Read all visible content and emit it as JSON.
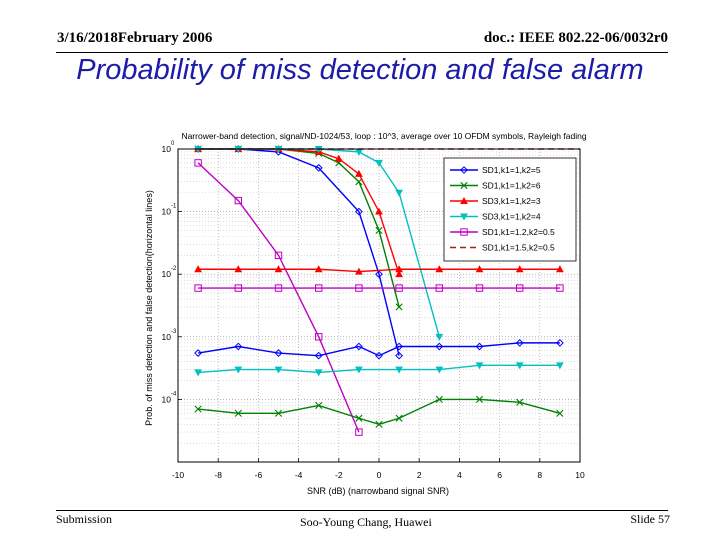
{
  "header": {
    "left": "3/16/2018February 2006",
    "right": "doc.: IEEE 802.22-06/0032r0"
  },
  "slide_title": "Probability of miss detection and false alarm",
  "footer": {
    "left": "Submission",
    "center": "Soo-Young Chang, Huawei",
    "right": "Slide 57"
  },
  "chart_data": {
    "type": "line",
    "title": "Narrower-band detection, signal/ND-1024/53, loop : 10^3, average over 10 OFDM symbols, Rayleigh fading",
    "xlabel": "SNR (dB) (narrowband signal SNR)",
    "ylabel": "Prob. of miss detection and false detection(horizontal lines)",
    "xlim": [
      -10,
      10
    ],
    "ylim_log10": [
      -5,
      0
    ],
    "xticks": [
      -10,
      -8,
      -6,
      -4,
      -2,
      0,
      2,
      4,
      6,
      8,
      10
    ],
    "xtick_labels": [
      "-10",
      "-8",
      "-6",
      "-4",
      "-2",
      "0",
      "2",
      "4",
      "6",
      "8",
      "10"
    ],
    "ytick_labels": [
      {
        "base": "10",
        "exp": "0",
        "value": 1
      },
      {
        "base": "10",
        "exp": "-1",
        "value": 0.1
      },
      {
        "base": "10",
        "exp": "-2",
        "value": 0.01
      },
      {
        "base": "10",
        "exp": "-3",
        "value": 0.001
      },
      {
        "base": "10",
        "exp": "-4",
        "value": 0.0001
      }
    ],
    "grid": true,
    "legend_position": "top-right",
    "series": [
      {
        "name": "SD1,k1=1,k2=5",
        "color": "#0000ff",
        "marker": "diamond",
        "dash": "solid",
        "x": [
          -9,
          -7,
          -5,
          -3,
          -1,
          0,
          1
        ],
        "y": [
          1.0,
          1.0,
          0.9,
          0.5,
          0.1,
          0.01,
          0.0005
        ]
      },
      {
        "name": "SD1,k1=1,k2=6",
        "color": "#008000",
        "marker": "x",
        "dash": "solid",
        "x": [
          -9,
          -7,
          -5,
          -3,
          -2,
          -1,
          0,
          1
        ],
        "y": [
          1.0,
          1.0,
          1.0,
          0.85,
          0.6,
          0.3,
          0.05,
          0.003
        ]
      },
      {
        "name": "SD3,k1=1,k2=3",
        "color": "#ff0000",
        "marker": "triangle-up",
        "dash": "solid",
        "x": [
          -9,
          -7,
          -5,
          -3,
          -2,
          -1,
          0,
          1
        ],
        "y": [
          1.0,
          1.0,
          1.0,
          0.9,
          0.7,
          0.4,
          0.1,
          0.01
        ]
      },
      {
        "name": "SD3,k1=1,k2=4",
        "color": "#00c0c0",
        "marker": "triangle-down",
        "dash": "solid",
        "x": [
          -9,
          -7,
          -5,
          -3,
          -1,
          0,
          1,
          3
        ],
        "y": [
          1.0,
          1.0,
          1.0,
          1.0,
          0.9,
          0.6,
          0.2,
          0.001
        ]
      },
      {
        "name": "SD1,k1=1.2,k2=0.5",
        "color": "#c000c0",
        "marker": "square",
        "dash": "solid",
        "x": [
          -9,
          -7,
          -5,
          -3,
          -1
        ],
        "y": [
          0.6,
          0.15,
          0.02,
          0.001,
          3e-05
        ]
      },
      {
        "name": "SD1,k1=1.5,k2=0.5",
        "color": "#a02020",
        "marker": "none",
        "dash": "dashed",
        "x": [
          -9,
          10
        ],
        "y": [
          1.05,
          1.05
        ]
      },
      {
        "name": "",
        "color": "#0000ff",
        "marker": "diamond",
        "dash": "solid",
        "x": [
          -9,
          -7,
          -5,
          -3,
          -1,
          0,
          1,
          3,
          5,
          7,
          9
        ],
        "y": [
          0.00055,
          0.0007,
          0.00055,
          0.0005,
          0.0007,
          0.0005,
          0.0007,
          0.0007,
          0.0007,
          0.0008,
          0.0008
        ]
      },
      {
        "name": "",
        "color": "#00c0c0",
        "marker": "triangle-down",
        "dash": "solid",
        "x": [
          -9,
          -7,
          -5,
          -3,
          -1,
          1,
          3,
          5,
          7,
          9
        ],
        "y": [
          0.00027,
          0.0003,
          0.0003,
          0.00027,
          0.0003,
          0.0003,
          0.0003,
          0.00035,
          0.00035,
          0.00035
        ]
      },
      {
        "name": "",
        "color": "#ff0000",
        "marker": "triangle-up",
        "dash": "solid",
        "x": [
          -9,
          -7,
          -5,
          -3,
          -1,
          1,
          3,
          5,
          7,
          9
        ],
        "y": [
          0.012,
          0.012,
          0.012,
          0.012,
          0.011,
          0.012,
          0.012,
          0.012,
          0.012,
          0.012
        ]
      },
      {
        "name": "",
        "color": "#c000c0",
        "marker": "square",
        "dash": "solid",
        "x": [
          -9,
          -7,
          -5,
          -3,
          -1,
          1,
          3,
          5,
          7,
          9
        ],
        "y": [
          0.006,
          0.006,
          0.006,
          0.006,
          0.006,
          0.006,
          0.006,
          0.006,
          0.006,
          0.006
        ]
      },
      {
        "name": "",
        "color": "#008000",
        "marker": "x",
        "dash": "solid",
        "x": [
          -9,
          -7,
          -5,
          -3,
          -1,
          0,
          1,
          3,
          5,
          7,
          9
        ],
        "y": [
          7e-05,
          6e-05,
          6e-05,
          8e-05,
          5e-05,
          4e-05,
          5e-05,
          0.0001,
          0.0001,
          9e-05,
          6e-05
        ]
      }
    ]
  }
}
